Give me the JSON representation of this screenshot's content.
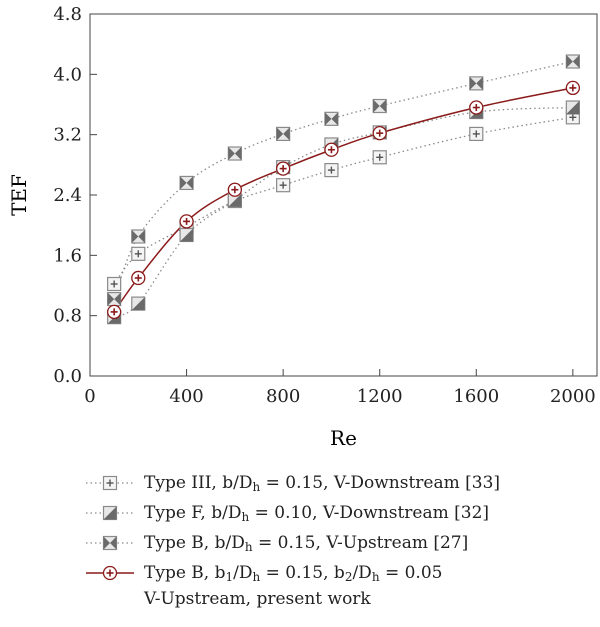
{
  "chart_data": {
    "type": "line",
    "title": "",
    "xlabel": "Re",
    "ylabel": "TEF",
    "xlim": [
      0,
      2100
    ],
    "ylim": [
      0,
      4.8
    ],
    "xticks": [
      "0",
      "400",
      "800",
      "1200",
      "1600",
      "2000"
    ],
    "xtick_values": [
      0,
      400,
      800,
      1200,
      1600,
      2000
    ],
    "yticks": [
      "0.0",
      "0.8",
      "1.6",
      "2.4",
      "3.2",
      "4.0",
      "4.8"
    ],
    "ytick_values": [
      0,
      0.8,
      1.6,
      2.4,
      3.2,
      4.0,
      4.8
    ],
    "grid": false,
    "legend_position": "bottom",
    "series": [
      {
        "name_parts": [
          "Type III, b/D",
          "h",
          " = 0.15, V-Downstream [33]"
        ],
        "marker": "square-plus",
        "style": "dotted",
        "color": "#8a8a8a",
        "x": [
          100,
          200,
          400,
          600,
          800,
          1000,
          1200,
          1600,
          2000
        ],
        "y": [
          1.22,
          1.62,
          1.98,
          2.32,
          2.53,
          2.73,
          2.9,
          3.21,
          3.43
        ]
      },
      {
        "name_parts": [
          "Type F, b/D",
          "h",
          " = 0.10, V-Downstream [32]"
        ],
        "marker": "square-half",
        "style": "dotted",
        "color": "#8a8a8a",
        "x": [
          100,
          200,
          400,
          600,
          800,
          1000,
          1200,
          1600,
          2000
        ],
        "y": [
          0.78,
          0.96,
          1.87,
          2.33,
          2.77,
          3.07,
          3.23,
          3.5,
          3.56
        ]
      },
      {
        "name_parts": [
          "Type B, b/D",
          "h",
          " = 0.15, V-Upstream [27]"
        ],
        "marker": "square-hourglass",
        "style": "dotted",
        "color": "#8a8a8a",
        "x": [
          100,
          200,
          400,
          600,
          800,
          1000,
          1200,
          1600,
          2000
        ],
        "y": [
          1.02,
          1.85,
          2.56,
          2.95,
          3.21,
          3.41,
          3.58,
          3.88,
          4.17
        ]
      },
      {
        "name_parts": [
          "Type B, b",
          "1",
          "/D",
          "h",
          " = 0.15, b",
          "2",
          "/D",
          "h",
          " = 0.05"
        ],
        "name_line2": "V-Upstream, present work",
        "marker": "circle-plus",
        "style": "solid",
        "color": "#8b1a1a",
        "x": [
          100,
          200,
          400,
          600,
          800,
          1000,
          1200,
          1600,
          2000
        ],
        "y": [
          0.85,
          1.3,
          2.05,
          2.47,
          2.75,
          3.0,
          3.22,
          3.56,
          3.82
        ]
      }
    ]
  }
}
